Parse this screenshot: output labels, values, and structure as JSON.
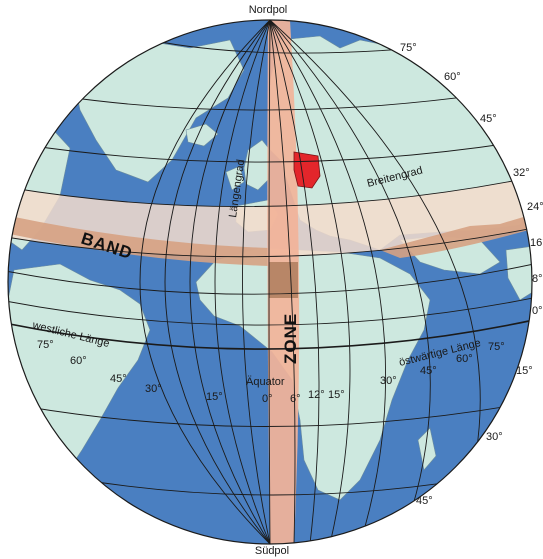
{
  "poles": {
    "north": "Nordpol",
    "south": "Südpol"
  },
  "bands": {
    "band": "BAND",
    "zone": "ZONE"
  },
  "lines": {
    "meridian": "Längengrad",
    "parallel": "Breitengrad",
    "equator": "Äquator",
    "west": "westliche Länge",
    "east": "östwärtige Länge"
  },
  "latitude_labels": [
    "75°",
    "60°",
    "45°",
    "32°",
    "24°",
    "16°",
    "8°",
    "0°",
    "15°",
    "30°",
    "45°"
  ],
  "longitude_labels_west": [
    "75°",
    "60°",
    "45°",
    "30°",
    "15°"
  ],
  "longitude_labels_center": [
    "0°",
    "6°",
    "12°",
    "15°"
  ],
  "longitude_labels_east": [
    "30°",
    "45°",
    "60°",
    "75°"
  ],
  "colors": {
    "ocean": "#4a7fc1",
    "land": "#cde8df",
    "band_light": "#f3dccd",
    "band_dark": "#d6a283",
    "zone": "#f2b399",
    "highlight": "#e3262b",
    "grid": "#1b1b1b"
  }
}
